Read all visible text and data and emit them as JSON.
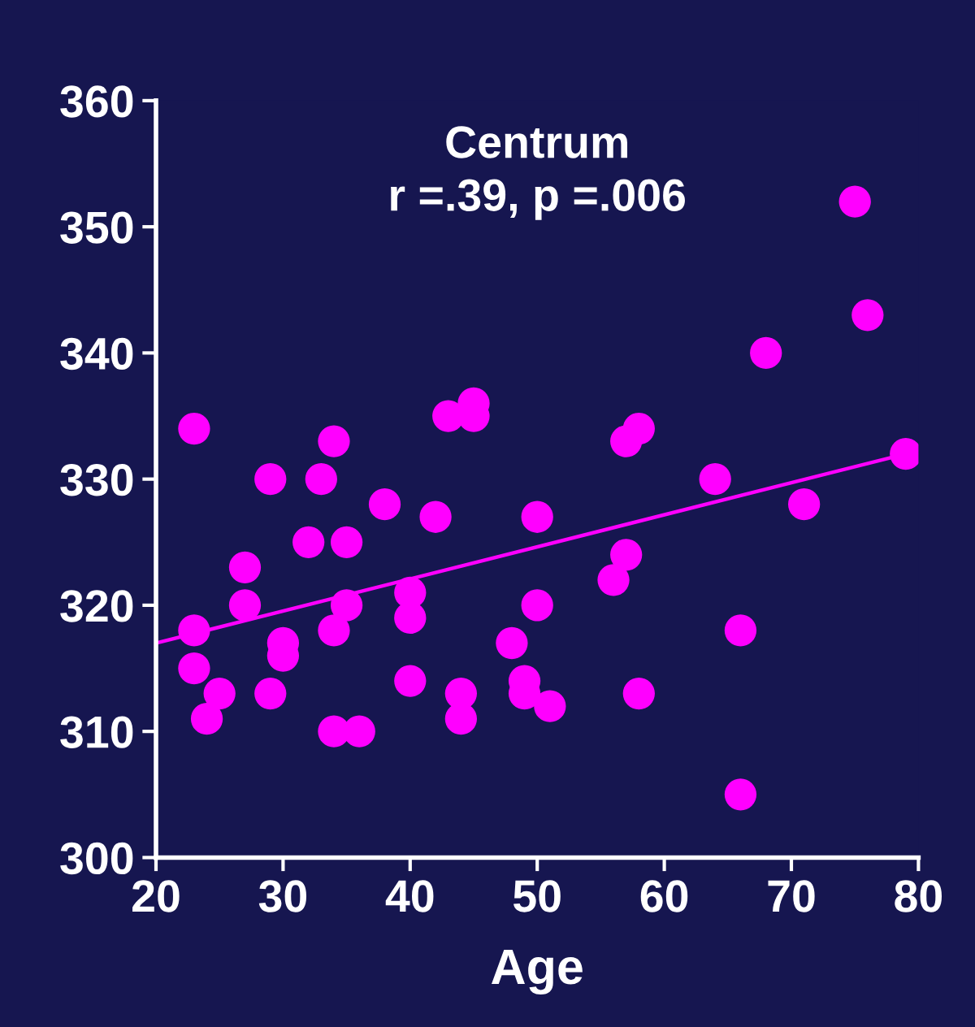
{
  "chart_data": {
    "type": "scatter",
    "title": "Centrum",
    "subtitle": "r =.39, p =.006",
    "xlabel": "Age",
    "xlim": [
      20,
      80
    ],
    "xticks": [
      20,
      30,
      40,
      50,
      60,
      70,
      80
    ],
    "ylim": [
      300,
      360
    ],
    "yticks": [
      300,
      310,
      320,
      330,
      340,
      350,
      360
    ],
    "grid": false,
    "series": [
      {
        "marker": "circle",
        "color": "#ff00ff",
        "x": [
          23,
          23,
          23,
          24,
          25,
          27,
          27,
          29,
          29,
          30,
          30,
          32,
          33,
          34,
          34,
          34,
          35,
          35,
          36,
          38,
          40,
          40,
          40,
          42,
          43,
          44,
          44,
          45,
          45,
          48,
          49,
          49,
          50,
          50,
          51,
          56,
          57,
          57,
          58,
          58,
          64,
          66,
          66,
          68,
          71,
          75,
          76,
          79
        ],
        "values": [
          334,
          318,
          315,
          311,
          313,
          323,
          320,
          330,
          313,
          317,
          316,
          325,
          330,
          333,
          318,
          310,
          325,
          320,
          310,
          328,
          321,
          319,
          314,
          327,
          335,
          313,
          311,
          336,
          335,
          317,
          314,
          313,
          327,
          320,
          312,
          322,
          333,
          324,
          334,
          313,
          330,
          318,
          305,
          340,
          328,
          352,
          343,
          332
        ]
      },
      {
        "type": "line",
        "marker": "none",
        "color": "#ff00ff",
        "x": [
          20,
          79
        ],
        "values": [
          317,
          332
        ]
      }
    ]
  }
}
